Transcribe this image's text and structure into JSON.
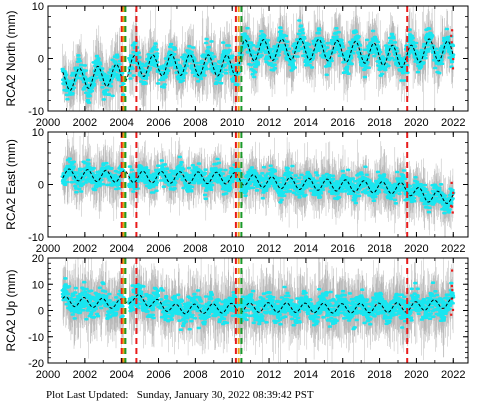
{
  "footer": "Plot Last Updated:   Sunday, January 30, 2022 08:39:42 PST",
  "colors": {
    "scatter": "#19e6f0",
    "errorbar": "#b4b4b4",
    "model": "#000000",
    "event_red": "#e81b1b",
    "event_orange": "#e8a21b",
    "event_green": "#1b9a2a",
    "outlier_red": "#e81b1b"
  },
  "chart_data": [
    {
      "type": "scatter",
      "ylabel": "RCA2 North (mm)",
      "xlim": [
        2000,
        2022.8
      ],
      "ylim": [
        -10,
        10
      ],
      "yticks": [
        -10,
        0,
        10
      ],
      "xticks": [
        2000,
        2002,
        2004,
        2006,
        2008,
        2010,
        2012,
        2014,
        2016,
        2018,
        2020,
        2022
      ],
      "grid": false,
      "series": [
        {
          "start": 2000.8,
          "end": 2022.0,
          "gaps": [
            [
              2004.1,
              2004.4
            ],
            [
              2006.0,
              2006.1
            ]
          ],
          "breakpoints": [
            [
              2000.8,
              -4.2
            ],
            [
              2004.0,
              -3.0
            ],
            [
              2004.5,
              -1.5
            ],
            [
              2007.0,
              -1.2
            ],
            [
              2010.2,
              -1.4
            ],
            [
              2010.6,
              1.5
            ],
            [
              2014.0,
              1.8
            ],
            [
              2017.0,
              1.2
            ],
            [
              2019.5,
              0.2
            ],
            [
              2020.5,
              1.8
            ],
            [
              2022.0,
              1.2
            ]
          ],
          "amplitude": 2.0,
          "phase": 0.55,
          "scatter_spread": 2.6,
          "error_spread": 5.0
        }
      ],
      "events": [
        {
          "t": 2004.0,
          "color": "event_red"
        },
        {
          "t": 2004.1,
          "color": "event_orange"
        },
        {
          "t": 2004.2,
          "color": "event_green"
        },
        {
          "t": 2004.8,
          "color": "event_red"
        },
        {
          "t": 2010.2,
          "color": "event_red"
        },
        {
          "t": 2010.35,
          "color": "event_orange"
        },
        {
          "t": 2010.5,
          "color": "event_green"
        },
        {
          "t": 2019.5,
          "color": "event_red"
        }
      ]
    },
    {
      "type": "scatter",
      "ylabel": "RCA2 East (mm)",
      "xlim": [
        2000,
        2022.8
      ],
      "ylim": [
        -10,
        10
      ],
      "yticks": [
        -10,
        0,
        10
      ],
      "xticks": [
        2000,
        2002,
        2004,
        2006,
        2008,
        2010,
        2012,
        2014,
        2016,
        2018,
        2020,
        2022
      ],
      "grid": false,
      "series": [
        {
          "start": 2000.8,
          "end": 2022.0,
          "gaps": [
            [
              2004.1,
              2004.4
            ],
            [
              2006.0,
              2006.1
            ]
          ],
          "breakpoints": [
            [
              2000.8,
              1.9
            ],
            [
              2004.0,
              1.5
            ],
            [
              2010.0,
              1.2
            ],
            [
              2012.0,
              0.4
            ],
            [
              2016.0,
              -0.2
            ],
            [
              2019.5,
              -0.8
            ],
            [
              2020.5,
              -2.2
            ],
            [
              2022.0,
              -2.6
            ]
          ],
          "amplitude": 1.1,
          "phase": 0.1,
          "scatter_spread": 2.2,
          "error_spread": 4.2
        }
      ],
      "events": [
        {
          "t": 2004.0,
          "color": "event_red"
        },
        {
          "t": 2004.1,
          "color": "event_orange"
        },
        {
          "t": 2004.2,
          "color": "event_green"
        },
        {
          "t": 2004.8,
          "color": "event_red"
        },
        {
          "t": 2010.2,
          "color": "event_red"
        },
        {
          "t": 2010.35,
          "color": "event_orange"
        },
        {
          "t": 2010.5,
          "color": "event_green"
        },
        {
          "t": 2019.5,
          "color": "event_red"
        }
      ]
    },
    {
      "type": "scatter",
      "ylabel": "RCA2 Up (mm)",
      "xlim": [
        2000,
        2022.8
      ],
      "ylim": [
        -20,
        20
      ],
      "yticks": [
        -20,
        -10,
        0,
        10,
        20
      ],
      "xticks": [
        2000,
        2002,
        2004,
        2006,
        2008,
        2010,
        2012,
        2014,
        2016,
        2018,
        2020,
        2022
      ],
      "xticklabels": [
        "2000",
        "2002",
        "2004",
        "2006",
        "2008",
        "2010",
        "2012",
        "2014",
        "2016",
        "2018",
        "2020",
        "2022"
      ],
      "grid": false,
      "series": [
        {
          "start": 2000.8,
          "end": 2022.0,
          "gaps": [
            [
              2004.1,
              2004.4
            ],
            [
              2006.0,
              2006.1
            ]
          ],
          "breakpoints": [
            [
              2000.8,
              3.5
            ],
            [
              2004.0,
              2.5
            ],
            [
              2004.5,
              5.0
            ],
            [
              2007.0,
              0.5
            ],
            [
              2012.0,
              1.2
            ],
            [
              2016.0,
              0.8
            ],
            [
              2019.5,
              1.2
            ],
            [
              2022.0,
              3.0
            ]
          ],
          "amplitude": 1.8,
          "phase": 0.3,
          "scatter_spread": 5.5,
          "error_spread": 11.0
        }
      ],
      "events": [
        {
          "t": 2004.0,
          "color": "event_red"
        },
        {
          "t": 2004.1,
          "color": "event_orange"
        },
        {
          "t": 2004.2,
          "color": "event_green"
        },
        {
          "t": 2004.8,
          "color": "event_red"
        },
        {
          "t": 2010.2,
          "color": "event_red"
        },
        {
          "t": 2010.35,
          "color": "event_orange"
        },
        {
          "t": 2010.5,
          "color": "event_green"
        },
        {
          "t": 2019.5,
          "color": "event_red"
        }
      ]
    }
  ]
}
